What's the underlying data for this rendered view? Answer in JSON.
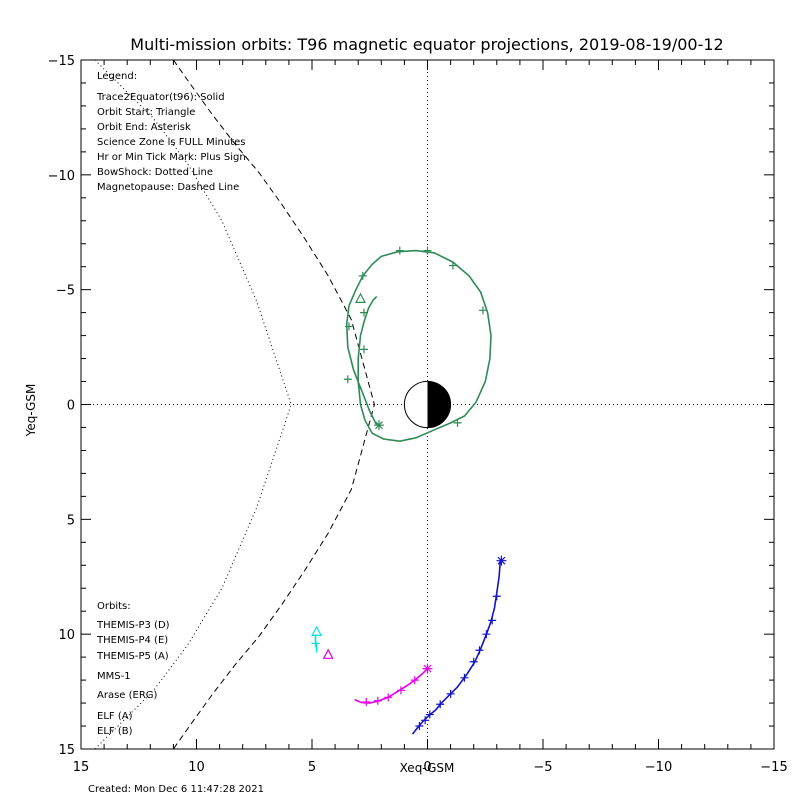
{
  "chart_data": {
    "type": "line",
    "title": "Multi-mission orbits: T96 magnetic equator projections, 2019-08-19/00-12",
    "xlabel": "Xeq-GSM",
    "ylabel": "Yeq-GSM",
    "xlim": [
      15,
      -15
    ],
    "ylim": [
      -15,
      15
    ],
    "x_ticks": [
      15,
      10,
      5,
      0,
      -5,
      -10,
      -15
    ],
    "y_ticks": [
      -15,
      -10,
      -5,
      0,
      5,
      10,
      15
    ],
    "x_tick_labels": [
      "15",
      "10",
      "5",
      "0",
      "−5",
      "−10",
      "−15"
    ],
    "y_tick_labels": [
      "−15",
      "−10",
      "−5",
      "0",
      "5",
      "10",
      "15"
    ],
    "legend_title": "Legend:",
    "legend_lines": [
      "Trace2Equator(t96): Solid",
      "Orbit Start: Triangle",
      "Orbit End: Asterisk",
      "Science Zone is FULL Minutes",
      "Hr or Min Tick Mark: Plus Sign",
      "BowShock: Dotted Line",
      "Magnetopause: Dashed Line"
    ],
    "orbits_title": "Orbits:",
    "orbits": [
      {
        "name": "THEMIS-P3 (D)",
        "color": "#00e5e5"
      },
      {
        "name": "THEMIS-P4 (E)",
        "color": "#1414c8"
      },
      {
        "name": "THEMIS-P5 (A)",
        "color": "#e600e6"
      },
      {
        "name": "MMS-1",
        "color": "#000000"
      },
      {
        "name": "Arase (ERG)",
        "color": "#2e8b57"
      },
      {
        "name": "ELF (A)",
        "color": "#2a7fff"
      },
      {
        "name": "ELF (B)",
        "color": "#e00000"
      }
    ],
    "series": [
      {
        "name": "Arase (ERG)",
        "color": "#2e8b57",
        "x": [
          2.2,
          2.5,
          2.85,
          3.2,
          3.45,
          3.5,
          3.4,
          3.1,
          2.8,
          2.4,
          2.0,
          1.3,
          0.5,
          -0.3,
          -1.1,
          -1.8,
          -2.3,
          -2.6,
          -2.75,
          -2.7,
          -2.5,
          -2.1,
          -1.6,
          -1.0,
          -0.3,
          0.5,
          1.2,
          1.9,
          2.4,
          2.7,
          2.9,
          3.0,
          3.0,
          2.9,
          2.75,
          2.55,
          2.35,
          2.2
        ],
        "y": [
          0.9,
          0.3,
          -0.6,
          -1.5,
          -2.5,
          -3.5,
          -4.3,
          -5.0,
          -5.6,
          -6.1,
          -6.45,
          -6.65,
          -6.7,
          -6.6,
          -6.2,
          -5.6,
          -4.9,
          -4.0,
          -3.0,
          -2.0,
          -1.0,
          -0.1,
          0.5,
          0.8,
          1.1,
          1.45,
          1.6,
          1.5,
          1.25,
          0.7,
          0.0,
          -1.0,
          -2.0,
          -3.0,
          -3.6,
          -4.2,
          -4.55,
          -4.7
        ],
        "ticks": [
          [
            3.45,
            -1.1
          ],
          [
            3.4,
            -3.4
          ],
          [
            2.8,
            -5.6
          ],
          [
            1.2,
            -6.7
          ],
          [
            0.0,
            -6.7
          ],
          [
            -1.1,
            -6.05
          ],
          [
            -2.4,
            -4.1
          ],
          [
            2.75,
            -4.0
          ],
          [
            2.75,
            -2.4
          ],
          [
            -1.3,
            0.8
          ]
        ],
        "start": [
          2.9,
          -4.6
        ],
        "end": [
          2.1,
          0.9
        ]
      },
      {
        "name": "THEMIS-P4 (E)",
        "color": "#1414c8",
        "x": [
          0.65,
          0.45,
          0.2,
          -0.05,
          -0.35,
          -0.6,
          -0.95,
          -1.3,
          -1.7,
          -2.05,
          -2.3,
          -2.55,
          -2.75,
          -2.9,
          -3.0,
          -3.1,
          -3.15
        ],
        "y": [
          14.35,
          14.1,
          13.8,
          13.55,
          13.3,
          13.0,
          12.65,
          12.3,
          11.75,
          11.2,
          10.65,
          10.0,
          9.45,
          8.85,
          8.2,
          7.5,
          6.8
        ],
        "ticks": [
          [
            0.35,
            14.0
          ],
          [
            0.1,
            13.75
          ],
          [
            -0.1,
            13.5
          ],
          [
            -0.55,
            13.05
          ],
          [
            -1.0,
            12.6
          ],
          [
            -1.6,
            11.9
          ],
          [
            -2.0,
            11.2
          ],
          [
            -2.25,
            10.7
          ],
          [
            -2.55,
            10.0
          ],
          [
            -2.8,
            9.4
          ],
          [
            -3.0,
            8.35
          ]
        ],
        "start": null,
        "end": [
          -3.2,
          6.8
        ]
      },
      {
        "name": "THEMIS-P5 (A)",
        "color": "#e600e6",
        "x": [
          3.15,
          2.85,
          2.5,
          2.1,
          1.7,
          1.3,
          0.9,
          0.55,
          0.25,
          0.0
        ],
        "y": [
          12.85,
          12.98,
          13.0,
          12.9,
          12.75,
          12.5,
          12.25,
          12.0,
          11.75,
          11.5
        ],
        "ticks": [
          [
            2.65,
            12.95
          ],
          [
            2.15,
            12.9
          ],
          [
            1.7,
            12.75
          ],
          [
            1.15,
            12.45
          ],
          [
            0.55,
            12.0
          ]
        ],
        "start": null,
        "end": [
          0.0,
          11.5
        ]
      },
      {
        "name": "THEMIS-P3 (D)",
        "color": "#00e5e5",
        "x": [
          4.85,
          4.85,
          4.8,
          4.8
        ],
        "y": [
          10.0,
          10.3,
          10.55,
          10.8
        ],
        "ticks": [
          [
            4.85,
            10.4
          ]
        ],
        "start": [
          4.8,
          9.9
        ],
        "end": null
      }
    ],
    "magenta_start_marker": [
      4.3,
      10.9
    ],
    "earth": {
      "x": 0,
      "y": 0,
      "radius_re": 1,
      "night_side": "dark",
      "day_side": "light"
    },
    "magnetopause": {
      "style": "dashed",
      "x": [
        8.7,
        8.0,
        7.0,
        6.0,
        5.0,
        4.0,
        3.0,
        2.0,
        1.0,
        0.0
      ],
      "y": [
        -15.0,
        -14.0,
        -12.6,
        -11.3,
        -10.1,
        -8.7,
        -7.2,
        -5.6,
        -3.7,
        0.0
      ]
    },
    "bowshock": {
      "style": "dotted",
      "x": [
        8.5,
        7.5,
        6.0,
        4.5,
        3.0,
        1.5,
        0.5,
        0.0
      ],
      "y": [
        -15.0,
        -14.0,
        -12.5,
        -10.5,
        -8.0,
        -4.5,
        -1.5,
        0.0
      ]
    },
    "footer": "Created: Mon Dec  6 11:47:28 2021"
  }
}
